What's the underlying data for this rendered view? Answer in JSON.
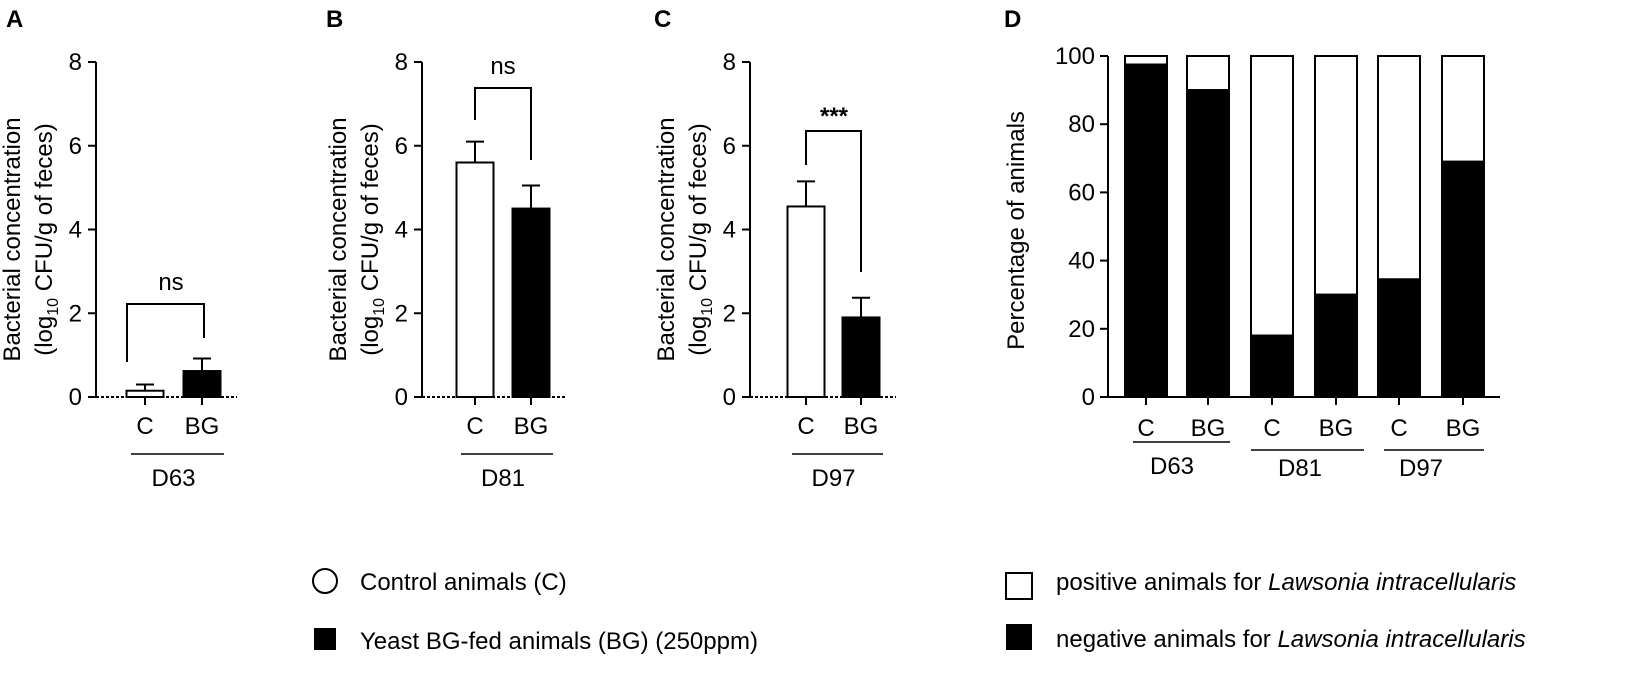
{
  "chart_data": [
    {
      "type": "bar",
      "panel": "A",
      "group": "D63",
      "categories": [
        "C",
        "BG"
      ],
      "values": [
        0.15,
        0.62
      ],
      "errors": [
        0.15,
        0.3
      ],
      "significance": "ns",
      "ylabel_line1": "Bacterial concentration",
      "ylabel_line2_pre": "(log",
      "ylabel_line2_sub": "10",
      "ylabel_line2_post": " CFU/g of feces)",
      "yticks": [
        "0",
        "2",
        "4",
        "6",
        "8"
      ],
      "ylim": [
        0,
        8
      ]
    },
    {
      "type": "bar",
      "panel": "B",
      "group": "D81",
      "categories": [
        "C",
        "BG"
      ],
      "values": [
        5.6,
        4.5
      ],
      "errors": [
        0.5,
        0.55
      ],
      "significance": "ns",
      "ylabel_line1": "Bacterial concentration",
      "ylabel_line2_pre": "(log",
      "ylabel_line2_sub": "10",
      "ylabel_line2_post": " CFU/g of feces)",
      "yticks": [
        "0",
        "2",
        "4",
        "6",
        "8"
      ],
      "ylim": [
        0,
        8
      ]
    },
    {
      "type": "bar",
      "panel": "C",
      "group": "D97",
      "categories": [
        "C",
        "BG"
      ],
      "values": [
        4.55,
        1.9
      ],
      "errors": [
        0.6,
        0.47
      ],
      "significance": "***",
      "ylabel_line1": "Bacterial concentration",
      "ylabel_line2_pre": "(log",
      "ylabel_line2_sub": "10",
      "ylabel_line2_post": " CFU/g of feces)",
      "yticks": [
        "0",
        "2",
        "4",
        "6",
        "8"
      ],
      "ylim": [
        0,
        8
      ]
    },
    {
      "type": "stacked-bar",
      "panel": "D",
      "categories": [
        "C",
        "BG",
        "C",
        "BG",
        "C",
        "BG"
      ],
      "groups": [
        "D63",
        "D81",
        "D97"
      ],
      "series": [
        {
          "name": "negative animals for Lawsonia intracellularis",
          "values": [
            97.5,
            90,
            18,
            30,
            34.5,
            69
          ]
        },
        {
          "name": "positive animals for Lawsonia intracellularis",
          "values": [
            2.5,
            10,
            82,
            70,
            65.5,
            31
          ]
        }
      ],
      "ylabel": "Percentage of animals",
      "yticks": [
        "0",
        "20",
        "40",
        "60",
        "80",
        "100"
      ],
      "ylim": [
        0,
        100
      ]
    }
  ],
  "legend_left": [
    {
      "text": "Control animals (C)"
    },
    {
      "text": "Yeast BG-fed animals (BG) (250ppm)"
    }
  ],
  "legend_right": [
    {
      "pre": "positive animals for ",
      "italic": "Lawsonia intracellularis"
    },
    {
      "pre": "negative animals for ",
      "italic": "Lawsonia intracellularis"
    }
  ],
  "colors": {
    "control": "#ffffff",
    "bg": "#000000",
    "axis": "#000000"
  }
}
